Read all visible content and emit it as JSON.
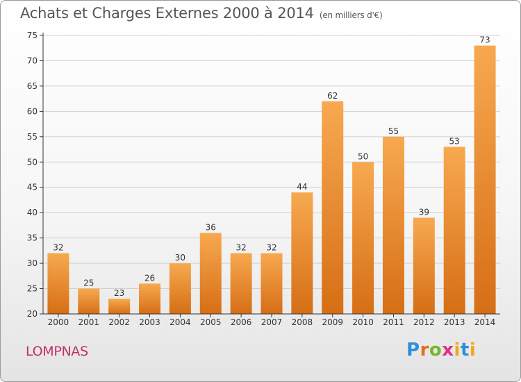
{
  "title": "Achats et Charges Externes 2000 à 2014",
  "subtitle": "(en milliers d'€)",
  "town": "LOMPNAS",
  "logo": {
    "letters": [
      "P",
      "r",
      "o",
      "x",
      "i",
      "t",
      "i"
    ]
  },
  "colors": {
    "bar_light": "#f7a950",
    "bar_dark": "#d66e15",
    "town": "#c0306a",
    "axis": "#333333",
    "grid": "#d0d0d0"
  },
  "chart_data": {
    "type": "bar",
    "categories": [
      "2000",
      "2001",
      "2002",
      "2003",
      "2004",
      "2005",
      "2006",
      "2007",
      "2008",
      "2009",
      "2010",
      "2011",
      "2012",
      "2013",
      "2014"
    ],
    "values": [
      32,
      25,
      23,
      26,
      30,
      36,
      32,
      32,
      44,
      62,
      50,
      55,
      39,
      53,
      73
    ],
    "ylim": [
      20,
      75
    ],
    "yticks": [
      20,
      25,
      30,
      35,
      40,
      45,
      50,
      55,
      60,
      65,
      70,
      75
    ],
    "grid": true,
    "data_labels": true,
    "legend": "none"
  }
}
